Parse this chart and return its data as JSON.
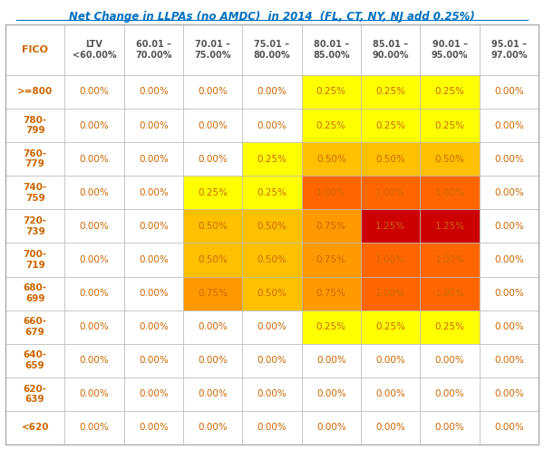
{
  "title": "Net Change in LLPAs (no AMDC)  in 2014  (FL, CT, NY, NJ add 0.25%)",
  "col_headers": [
    "LTV\n<60.00%",
    "60.01 –\n70.00%",
    "70.01 –\n75.00%",
    "75.01 –\n80.00%",
    "80.01 –\n85.00%",
    "85.01 –\n90.00%",
    "90.01 –\n95.00%",
    "95.01 –\n97.00%"
  ],
  "row_headers": [
    ">=800",
    "780-\n799",
    "760-\n779",
    "740-\n759",
    "720-\n739",
    "700-\n719",
    "680-\n699",
    "660-\n679",
    "640-\n659",
    "620-\n639",
    "<620"
  ],
  "fico_label": "FICO",
  "values": [
    [
      0.0,
      0.0,
      0.0,
      0.0,
      0.25,
      0.25,
      0.25,
      0.0
    ],
    [
      0.0,
      0.0,
      0.0,
      0.0,
      0.25,
      0.25,
      0.25,
      0.0
    ],
    [
      0.0,
      0.0,
      0.0,
      0.25,
      0.5,
      0.5,
      0.5,
      0.0
    ],
    [
      0.0,
      0.0,
      0.25,
      0.25,
      1.0,
      1.0,
      1.0,
      0.0
    ],
    [
      0.0,
      0.0,
      0.5,
      0.5,
      0.75,
      1.25,
      1.25,
      0.0
    ],
    [
      0.0,
      0.0,
      0.5,
      0.5,
      0.75,
      1.0,
      1.0,
      0.0
    ],
    [
      0.0,
      0.0,
      0.75,
      0.5,
      0.75,
      1.0,
      1.0,
      0.0
    ],
    [
      0.0,
      0.0,
      0.0,
      0.0,
      0.25,
      0.25,
      0.25,
      0.0
    ],
    [
      0.0,
      0.0,
      0.0,
      0.0,
      0.0,
      0.0,
      0.0,
      0.0
    ],
    [
      0.0,
      0.0,
      0.0,
      0.0,
      0.0,
      0.0,
      0.0,
      0.0
    ],
    [
      0.0,
      0.0,
      0.0,
      0.0,
      0.0,
      0.0,
      0.0,
      0.0
    ]
  ],
  "color_map": {
    "0.00": "#ffffff",
    "0.25": "#ffff00",
    "0.50": "#ffc000",
    "0.75": "#ff9900",
    "1.00": "#ff6600",
    "1.25": "#cc0000"
  },
  "text_color": "#cc6600",
  "background_color": "#ffffff",
  "grid_color": "#bbbbbb",
  "title_color": "#0070c0",
  "header_text_color": "#555555"
}
